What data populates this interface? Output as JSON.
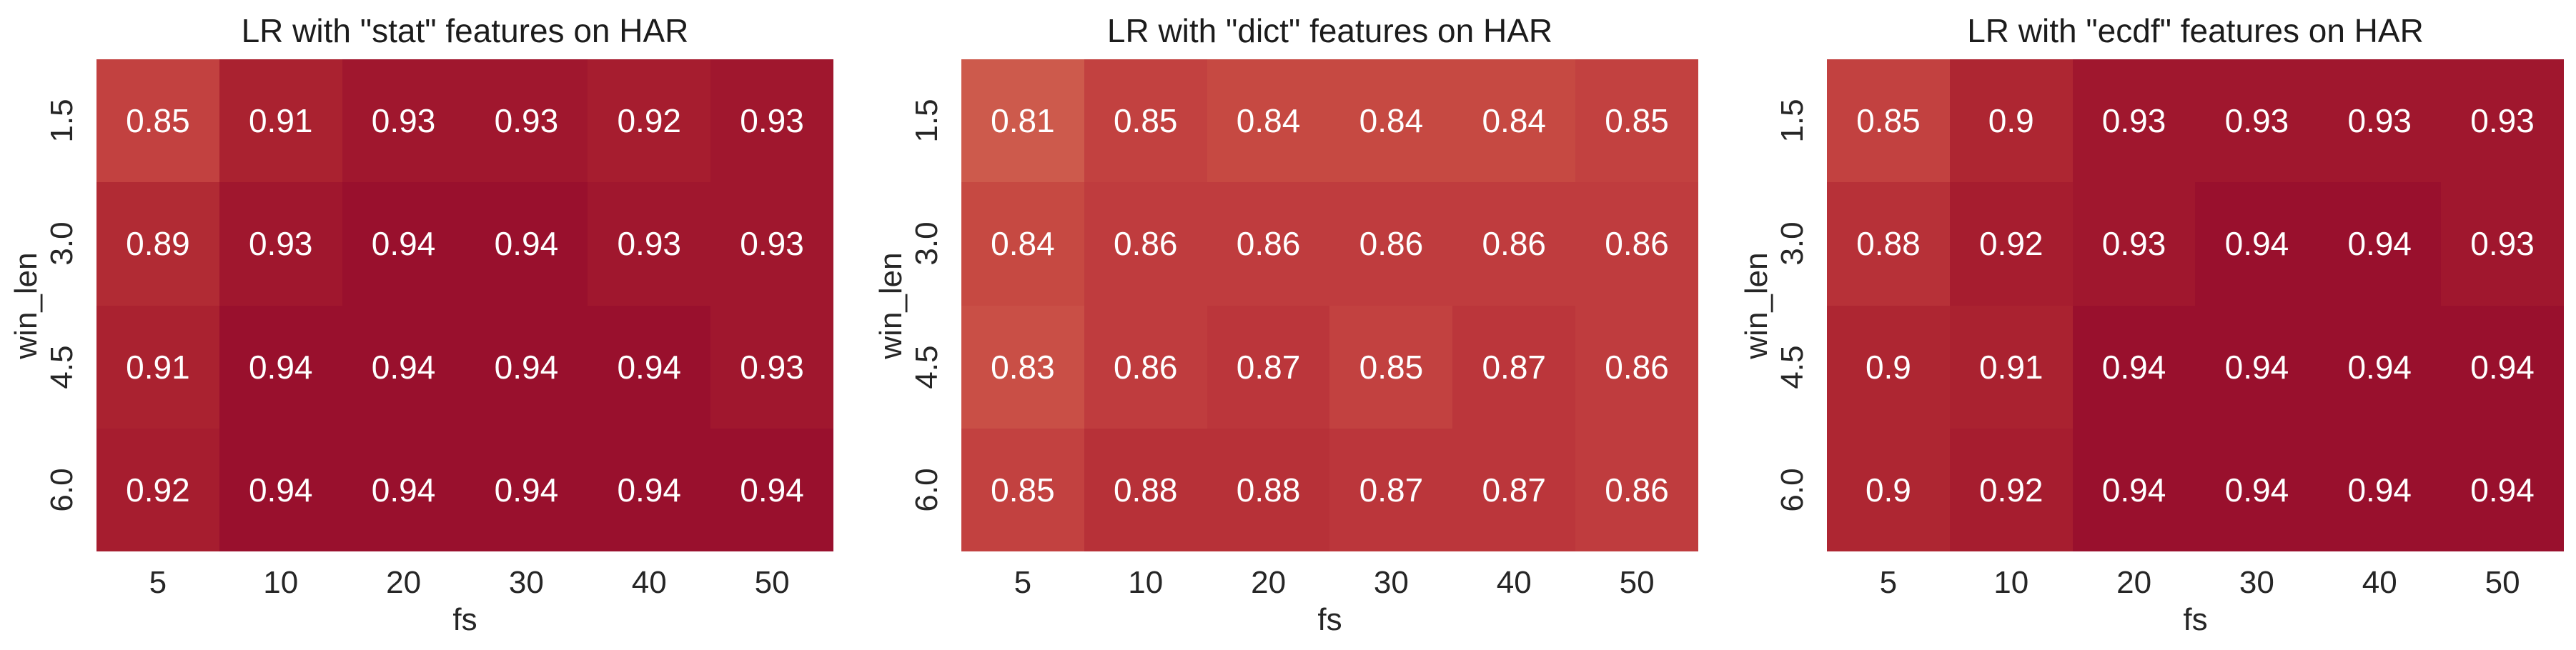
{
  "figure": {
    "background": "#ffffff",
    "title_color": "#1c1c1c",
    "tick_color": "#262626",
    "annotation_color": "#ffffff"
  },
  "chart_data": [
    {
      "type": "heatmap",
      "title": "LR with \"stat\" features on HAR",
      "xlabel": "fs",
      "ylabel": "win_len",
      "x_ticks": [
        "5",
        "10",
        "20",
        "30",
        "40",
        "50"
      ],
      "y_ticks": [
        "1.5",
        "3.0",
        "4.5",
        "6.0"
      ],
      "values": [
        [
          0.85,
          0.91,
          0.93,
          0.93,
          0.92,
          0.93
        ],
        [
          0.89,
          0.93,
          0.94,
          0.94,
          0.93,
          0.93
        ],
        [
          0.91,
          0.94,
          0.94,
          0.94,
          0.94,
          0.93
        ],
        [
          0.92,
          0.94,
          0.94,
          0.94,
          0.94,
          0.94
        ]
      ]
    },
    {
      "type": "heatmap",
      "title": "LR with \"dict\" features on HAR",
      "xlabel": "fs",
      "ylabel": "win_len",
      "x_ticks": [
        "5",
        "10",
        "20",
        "30",
        "40",
        "50"
      ],
      "y_ticks": [
        "1.5",
        "3.0",
        "4.5",
        "6.0"
      ],
      "values": [
        [
          0.81,
          0.85,
          0.84,
          0.84,
          0.84,
          0.85
        ],
        [
          0.84,
          0.86,
          0.86,
          0.86,
          0.86,
          0.86
        ],
        [
          0.83,
          0.86,
          0.87,
          0.85,
          0.87,
          0.86
        ],
        [
          0.85,
          0.88,
          0.88,
          0.87,
          0.87,
          0.86
        ]
      ]
    },
    {
      "type": "heatmap",
      "title": "LR with \"ecdf\" features on HAR",
      "xlabel": "fs",
      "ylabel": "win_len",
      "x_ticks": [
        "5",
        "10",
        "20",
        "30",
        "40",
        "50"
      ],
      "y_ticks": [
        "1.5",
        "3.0",
        "4.5",
        "6.0"
      ],
      "values": [
        [
          0.85,
          0.9,
          0.93,
          0.93,
          0.93,
          0.93
        ],
        [
          0.88,
          0.92,
          0.93,
          0.94,
          0.94,
          0.93
        ],
        [
          0.9,
          0.91,
          0.94,
          0.94,
          0.94,
          0.94
        ],
        [
          0.9,
          0.92,
          0.94,
          0.94,
          0.94,
          0.94
        ]
      ]
    }
  ],
  "color_scale": {
    "0.81": "#cd5a4c",
    "0.83": "#c94f46",
    "0.84": "#c64942",
    "0.85": "#c24140",
    "0.86": "#bf3c3e",
    "0.87": "#bb363b",
    "0.88": "#b73138",
    "0.89": "#b12b34",
    "0.9": "#ae2632",
    "0.91": "#aa2230",
    "0.92": "#a61d2f",
    "0.93": "#a0172e",
    "0.94": "#99102d"
  }
}
